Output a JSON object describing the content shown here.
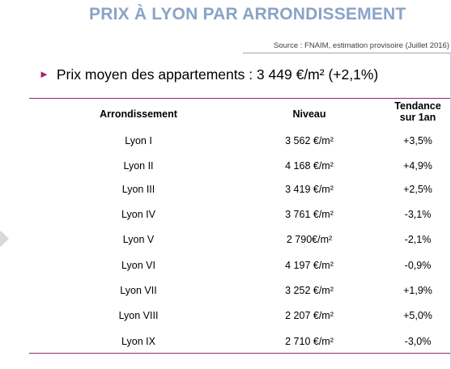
{
  "title": "PRIX À LYON PAR ARRONDISSEMENT",
  "source": "Source : FNAIM, estimation provisoire (Juillet 2016)",
  "summary": "Prix moyen des appartements : 3 449 €/m² (+2,1%)",
  "table": {
    "headers": {
      "arrondissement": "Arrondissement",
      "niveau": "Niveau",
      "tendance": "Tendance\nsur 1an"
    },
    "rows": [
      {
        "arrondissement": "Lyon I",
        "niveau": "3 562 €/m²",
        "tendance": "+3,5%"
      },
      {
        "arrondissement": "Lyon II",
        "niveau": "4 168 €/m²",
        "tendance": "+4,9%"
      },
      {
        "arrondissement": "Lyon III",
        "niveau": "3 419 €/m²",
        "tendance": "+2,5%"
      },
      {
        "arrondissement": "Lyon IV",
        "niveau": "3 761 €/m²",
        "tendance": "-3,1%"
      },
      {
        "arrondissement": "Lyon V",
        "niveau": "2 790€/m²",
        "tendance": "-2,1%"
      },
      {
        "arrondissement": "Lyon VI",
        "niveau": "4 197 €/m²",
        "tendance": "-0,9%"
      },
      {
        "arrondissement": "Lyon VII",
        "niveau": "3 252 €/m²",
        "tendance": "+1,9%"
      },
      {
        "arrondissement": "Lyon VIII",
        "niveau": "2 207 €/m²",
        "tendance": "+5,0%"
      },
      {
        "arrondissement": "Lyon IX",
        "niveau": "2 710 €/m²",
        "tendance": "-3,0%"
      }
    ]
  },
  "colors": {
    "title": "#8aa3c8",
    "accent": "#a02470",
    "table_rule": "#8c2a6a"
  }
}
